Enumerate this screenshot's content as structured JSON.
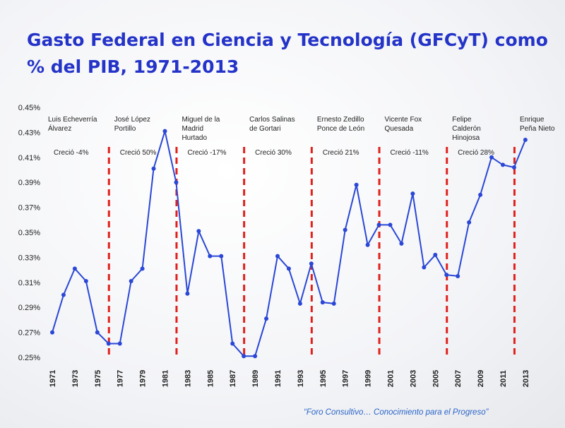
{
  "title": {
    "line1": "Gasto Federal en Ciencia y Tecnología (GFCyT) como",
    "line2": "% del PIB, 1971-2013"
  },
  "footer": "“Foro Consultivo… Conocimiento para el Progreso”",
  "colors": {
    "title": "#2433c8",
    "line": "#2a47d6",
    "divider": "#e0211d",
    "text": "#222222"
  },
  "chart_data": {
    "type": "line",
    "title": "Gasto Federal en Ciencia y Tecnología (GFCyT) como % del PIB, 1971-2013",
    "xlabel": "",
    "ylabel": "",
    "ylim": [
      0.25,
      0.45
    ],
    "y_ticks": [
      "0.25%",
      "0.27%",
      "0.29%",
      "0.31%",
      "0.33%",
      "0.35%",
      "0.37%",
      "0.39%",
      "0.41%",
      "0.43%",
      "0.45%"
    ],
    "x_tick_labels": [
      "1971",
      "1973",
      "1975",
      "1977",
      "1979",
      "1981",
      "1983",
      "1985",
      "1987",
      "1989",
      "1991",
      "1993",
      "1995",
      "1997",
      "1999",
      "2001",
      "2003",
      "2005",
      "2007",
      "2009",
      "2011",
      "2013"
    ],
    "grid": false,
    "series": [
      {
        "name": "",
        "x": [
          1971,
          1972,
          1973,
          1974,
          1975,
          1976,
          1977,
          1978,
          1979,
          1980,
          1981,
          1982,
          1983,
          1984,
          1985,
          1986,
          1987,
          1988,
          1989,
          1990,
          1991,
          1992,
          1993,
          1994,
          1995,
          1996,
          1997,
          1998,
          1999,
          2000,
          2001,
          2002,
          2003,
          2004,
          2005,
          2006,
          2007,
          2008,
          2009,
          2010,
          2011,
          2012,
          2013
        ],
        "values": [
          0.27,
          0.3,
          0.321,
          0.311,
          0.27,
          0.261,
          0.261,
          0.311,
          0.321,
          0.401,
          0.431,
          0.39,
          0.301,
          0.351,
          0.331,
          0.331,
          0.261,
          0.251,
          0.251,
          0.281,
          0.331,
          0.321,
          0.293,
          0.325,
          0.294,
          0.293,
          0.352,
          0.388,
          0.34,
          0.356,
          0.356,
          0.341,
          0.381,
          0.322,
          0.332,
          0.316,
          0.315,
          0.358,
          0.38,
          0.41,
          0.404,
          0.402,
          0.424
        ]
      }
    ],
    "dividers": [
      1976,
      1982,
      1988,
      1994,
      2000,
      2006,
      2012
    ],
    "periods": [
      {
        "name": "Luis Echeverría\nÁlvarez",
        "growth": "Creció -4%"
      },
      {
        "name": "José López\nPortillo",
        "growth": "Creció 50%"
      },
      {
        "name": "Miguel de la\nMadrid\nHurtado",
        "growth": "Creció -17%"
      },
      {
        "name": "Carlos Salinas\nde Gortari",
        "growth": "Creció 30%"
      },
      {
        "name": "Ernesto Zedillo\nPonce de León",
        "growth": "Creció 21%"
      },
      {
        "name": "Vicente Fox\nQuesada",
        "growth": "Creció -11%"
      },
      {
        "name": "Felipe\nCalderón\nHinojosa",
        "growth": "Creció 28%"
      },
      {
        "name": "Enrique\nPeña Nieto",
        "growth": ""
      }
    ]
  }
}
